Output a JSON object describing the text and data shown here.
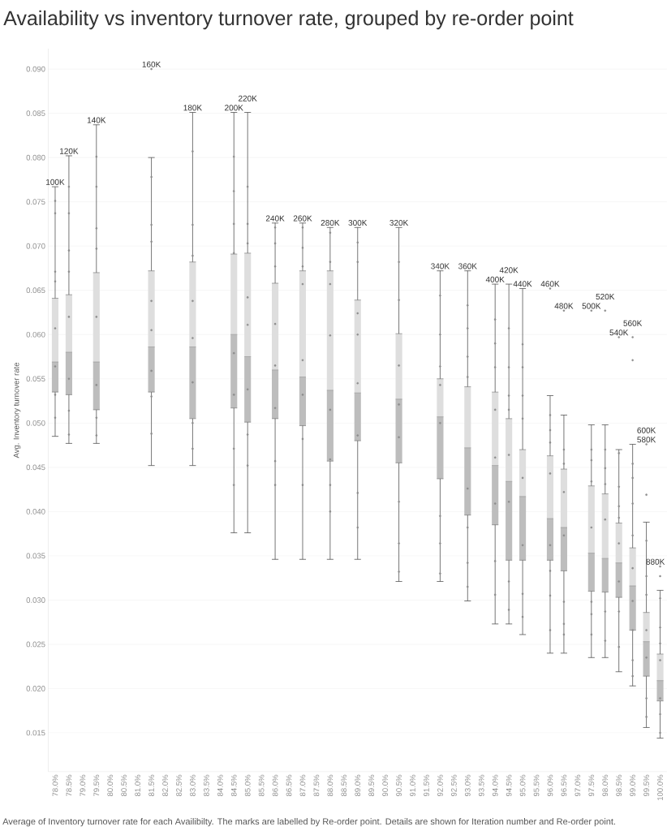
{
  "chart_data": {
    "type": "box",
    "title": "Availability vs inventory turnover rate, grouped by re-order point",
    "ylabel": "Avg. Inventory turnover rate",
    "categories": [
      "78.0%",
      "78.5%",
      "79.0%",
      "79.5%",
      "80.0%",
      "80.5%",
      "81.0%",
      "81.5%",
      "82.0%",
      "82.5%",
      "83.0%",
      "83.5%",
      "84.0%",
      "84.5%",
      "85.0%",
      "85.5%",
      "86.0%",
      "86.5%",
      "87.0%",
      "87.5%",
      "88.0%",
      "88.5%",
      "89.0%",
      "89.5%",
      "90.0%",
      "90.5%",
      "91.0%",
      "91.5%",
      "92.0%",
      "92.5%",
      "93.0%",
      "93.5%",
      "94.0%",
      "94.5%",
      "95.0%",
      "95.5%",
      "96.0%",
      "96.5%",
      "97.0%",
      "97.5%",
      "98.0%",
      "98.5%",
      "99.0%",
      "99.5%",
      "100.0%"
    ],
    "series": [
      {
        "type": "box",
        "color": "#dedede",
        "boxes": [
          {
            "low": 0.0485,
            "q1": 0.0535,
            "median": 0.0569,
            "q3": 0.0641,
            "high": 0.0767
          },
          {
            "low": 0.0477,
            "q1": 0.0532,
            "median": 0.058,
            "q3": 0.0645,
            "high": 0.0802
          },
          null,
          {
            "low": 0.0477,
            "q1": 0.0515,
            "median": 0.0569,
            "q3": 0.067,
            "high": 0.0837
          },
          null,
          null,
          null,
          {
            "low": 0.0452,
            "q1": 0.0535,
            "median": 0.0586,
            "q3": 0.0672,
            "high": 0.08
          },
          null,
          null,
          {
            "low": 0.0452,
            "q1": 0.0505,
            "median": 0.0586,
            "q3": 0.0682,
            "high": 0.0851
          },
          null,
          null,
          {
            "low": 0.0376,
            "q1": 0.0517,
            "median": 0.06,
            "q3": 0.0691,
            "high": 0.0851
          },
          {
            "low": 0.0376,
            "q1": 0.0501,
            "median": 0.0575,
            "q3": 0.0692,
            "high": 0.0851
          },
          null,
          {
            "low": 0.0346,
            "q1": 0.0505,
            "median": 0.056,
            "q3": 0.0658,
            "high": 0.0726
          },
          null,
          {
            "low": 0.0346,
            "q1": 0.0497,
            "median": 0.0552,
            "q3": 0.0672,
            "high": 0.0726
          },
          null,
          {
            "low": 0.0346,
            "q1": 0.0457,
            "median": 0.0537,
            "q3": 0.0672,
            "high": 0.0721
          },
          null,
          {
            "low": 0.0346,
            "q1": 0.048,
            "median": 0.0534,
            "q3": 0.0639,
            "high": 0.0721
          },
          null,
          null,
          {
            "low": 0.0321,
            "q1": 0.0455,
            "median": 0.0527,
            "q3": 0.0601,
            "high": 0.0721
          },
          null,
          null,
          {
            "low": 0.0321,
            "q1": 0.0437,
            "median": 0.0507,
            "q3": 0.055,
            "high": 0.0672
          },
          null,
          {
            "low": 0.0299,
            "q1": 0.0396,
            "median": 0.0472,
            "q3": 0.0541,
            "high": 0.0672
          },
          null,
          {
            "low": 0.0273,
            "q1": 0.0385,
            "median": 0.0452,
            "q3": 0.0535,
            "high": 0.0657
          },
          {
            "low": 0.0273,
            "q1": 0.0345,
            "median": 0.0434,
            "q3": 0.0505,
            "high": 0.0657
          },
          {
            "low": 0.0261,
            "q1": 0.0345,
            "median": 0.0417,
            "q3": 0.047,
            "high": 0.0652
          },
          null,
          {
            "low": 0.024,
            "q1": 0.0345,
            "median": 0.0392,
            "q3": 0.0463,
            "high": 0.0531
          },
          {
            "low": 0.024,
            "q1": 0.0333,
            "median": 0.0382,
            "q3": 0.0448,
            "high": 0.0509
          },
          null,
          {
            "low": 0.0235,
            "q1": 0.031,
            "median": 0.0353,
            "q3": 0.0429,
            "high": 0.0498
          },
          {
            "low": 0.0235,
            "q1": 0.0309,
            "median": 0.0347,
            "q3": 0.042,
            "high": 0.0498
          },
          {
            "low": 0.0219,
            "q1": 0.0303,
            "median": 0.0342,
            "q3": 0.0387,
            "high": 0.047
          },
          {
            "low": 0.0203,
            "q1": 0.0266,
            "median": 0.0316,
            "q3": 0.0359,
            "high": 0.0476
          },
          {
            "low": 0.0156,
            "q1": 0.0214,
            "median": 0.0253,
            "q3": 0.0286,
            "high": 0.0388
          },
          {
            "low": 0.0144,
            "q1": 0.0186,
            "median": 0.0209,
            "q3": 0.0239,
            "high": 0.0311
          }
        ]
      },
      {
        "type": "scatter",
        "color": "#8c8c8c",
        "marker": "circle",
        "x": [
          "78.0%",
          "78.0%",
          "78.0%",
          "78.0%",
          "78.0%",
          "78.0%",
          "78.0%",
          "78.0%",
          "78.5%",
          "78.5%",
          "78.5%",
          "78.5%",
          "78.5%",
          "78.5%",
          "78.5%",
          "78.5%",
          "79.5%",
          "79.5%",
          "79.5%",
          "79.5%",
          "79.5%",
          "79.5%",
          "79.5%",
          "79.5%",
          "81.5%",
          "81.5%",
          "81.5%",
          "81.5%",
          "81.5%",
          "81.5%",
          "81.5%",
          "81.5%",
          "83.0%",
          "83.0%",
          "83.0%",
          "83.0%",
          "83.0%",
          "83.0%",
          "83.0%",
          "83.0%",
          "84.5%",
          "84.5%",
          "84.5%",
          "84.5%",
          "84.5%",
          "84.5%",
          "84.5%",
          "84.5%",
          "85.0%",
          "85.0%",
          "85.0%",
          "85.0%",
          "85.0%",
          "85.0%",
          "85.0%",
          "85.0%",
          "86.0%",
          "86.0%",
          "86.0%",
          "86.0%",
          "86.0%",
          "86.0%",
          "86.0%",
          "86.0%",
          "87.0%",
          "87.0%",
          "87.0%",
          "87.0%",
          "87.0%",
          "87.0%",
          "87.0%",
          "87.0%",
          "88.0%",
          "88.0%",
          "88.0%",
          "88.0%",
          "88.0%",
          "88.0%",
          "88.0%",
          "88.0%",
          "89.0%",
          "89.0%",
          "89.0%",
          "89.0%",
          "89.0%",
          "89.0%",
          "89.0%",
          "89.0%",
          "90.5%",
          "90.5%",
          "90.5%",
          "90.5%",
          "90.5%",
          "90.5%",
          "90.5%",
          "90.5%",
          "92.0%",
          "92.0%",
          "92.0%",
          "92.0%",
          "92.0%",
          "92.0%",
          "92.0%",
          "92.0%",
          "93.0%",
          "93.0%",
          "93.0%",
          "93.0%",
          "93.0%",
          "93.0%",
          "93.0%",
          "93.0%",
          "94.0%",
          "94.0%",
          "94.0%",
          "94.0%",
          "94.0%",
          "94.0%",
          "94.0%",
          "94.0%",
          "94.5%",
          "94.5%",
          "94.5%",
          "94.5%",
          "94.5%",
          "94.5%",
          "94.5%",
          "94.5%",
          "95.0%",
          "95.0%",
          "95.0%",
          "95.0%",
          "95.0%",
          "95.0%",
          "95.0%",
          "95.0%",
          "96.0%",
          "96.0%",
          "96.0%",
          "96.0%",
          "96.0%",
          "96.0%",
          "96.0%",
          "96.0%",
          "96.5%",
          "96.5%",
          "96.5%",
          "96.5%",
          "96.5%",
          "96.5%",
          "96.5%",
          "97.5%",
          "97.5%",
          "97.5%",
          "97.5%",
          "97.5%",
          "97.5%",
          "97.5%",
          "98.0%",
          "98.0%",
          "98.0%",
          "98.0%",
          "98.0%",
          "98.0%",
          "98.5%",
          "98.5%",
          "98.5%",
          "98.5%",
          "98.5%",
          "98.5%",
          "98.5%",
          "98.5%",
          "99.0%",
          "99.0%",
          "99.0%",
          "99.0%",
          "99.0%",
          "99.0%",
          "99.0%",
          "99.0%",
          "99.0%",
          "99.5%",
          "99.5%",
          "99.5%",
          "99.5%",
          "99.5%",
          "99.5%",
          "99.5%",
          "100.0%",
          "100.0%",
          "100.0%",
          "100.0%",
          "100.0%",
          "100.0%",
          "100.0%",
          "81.5%",
          "96.0%",
          "96.5%",
          "97.5%",
          "98.0%",
          "98.5%",
          "99.0%",
          "99.0%",
          "99.5%",
          "99.5%",
          "100.0%",
          "100.0%"
        ],
        "values": [
          0.0751,
          0.0737,
          0.0671,
          0.066,
          0.0607,
          0.0564,
          0.0532,
          0.0506,
          0.0767,
          0.0737,
          0.0695,
          0.0671,
          0.062,
          0.055,
          0.0514,
          0.0487,
          0.0801,
          0.0767,
          0.072,
          0.0697,
          0.062,
          0.0543,
          0.0506,
          0.0486,
          0.0778,
          0.0724,
          0.0705,
          0.0638,
          0.0605,
          0.0559,
          0.053,
          0.0488,
          0.0807,
          0.0724,
          0.0689,
          0.0638,
          0.0596,
          0.0546,
          0.05,
          0.0471,
          0.0801,
          0.0762,
          0.0725,
          0.0692,
          0.0579,
          0.0532,
          0.0471,
          0.043,
          0.0767,
          0.0725,
          0.0703,
          0.0642,
          0.0611,
          0.0538,
          0.0487,
          0.0452,
          0.0721,
          0.0703,
          0.0677,
          0.0612,
          0.0565,
          0.0517,
          0.0457,
          0.043,
          0.0721,
          0.0698,
          0.0677,
          0.0657,
          0.0571,
          0.0532,
          0.0482,
          0.043,
          0.0715,
          0.0682,
          0.0657,
          0.0599,
          0.0515,
          0.0459,
          0.043,
          0.04,
          0.0704,
          0.0682,
          0.0624,
          0.06,
          0.0545,
          0.0486,
          0.0421,
          0.0382,
          0.0682,
          0.0639,
          0.0565,
          0.0521,
          0.0484,
          0.0411,
          0.0364,
          0.0332,
          0.0644,
          0.06,
          0.0564,
          0.0543,
          0.05,
          0.0395,
          0.0364,
          0.033,
          0.0633,
          0.0607,
          0.0575,
          0.0552,
          0.0426,
          0.0382,
          0.0342,
          0.0315,
          0.0617,
          0.059,
          0.0563,
          0.0515,
          0.0461,
          0.0409,
          0.0344,
          0.0306,
          0.0607,
          0.0563,
          0.0531,
          0.0515,
          0.0464,
          0.0411,
          0.0321,
          0.0289,
          0.0589,
          0.0563,
          0.0531,
          0.0505,
          0.0438,
          0.0362,
          0.0307,
          0.0281,
          0.0509,
          0.0492,
          0.0478,
          0.0443,
          0.0362,
          0.0333,
          0.0305,
          0.0266,
          0.047,
          0.0454,
          0.0422,
          0.0373,
          0.0298,
          0.0273,
          0.0261,
          0.047,
          0.0458,
          0.0434,
          0.0382,
          0.0298,
          0.0284,
          0.0261,
          0.047,
          0.0449,
          0.0431,
          0.0391,
          0.0287,
          0.0254,
          0.0466,
          0.0428,
          0.0406,
          0.0393,
          0.0364,
          0.0321,
          0.0287,
          0.0247,
          0.0454,
          0.0438,
          0.0409,
          0.0373,
          0.0336,
          0.0299,
          0.0266,
          0.0232,
          0.0214,
          0.0367,
          0.0327,
          0.0306,
          0.0266,
          0.0235,
          0.0189,
          0.0168,
          0.0302,
          0.0269,
          0.0251,
          0.0232,
          0.0189,
          0.0171,
          0.015,
          0.09,
          0.0652,
          0.0627,
          0.0627,
          0.0627,
          0.0597,
          0.0597,
          0.0571,
          0.0476,
          0.0419,
          0.0338,
          0.0327
        ]
      }
    ],
    "annotations": [
      {
        "text": "100K",
        "x": "78.0%",
        "y": 0.0767
      },
      {
        "text": "120K",
        "x": "78.5%",
        "y": 0.0802
      },
      {
        "text": "140K",
        "x": "79.5%",
        "y": 0.0837
      },
      {
        "text": "160K",
        "x": "81.5%",
        "y": 0.09
      },
      {
        "text": "180K",
        "x": "83.0%",
        "y": 0.0851
      },
      {
        "text": "200K",
        "x": "84.5%",
        "y": 0.0851
      },
      {
        "text": "220K",
        "x": "85.0%",
        "y": 0.0851
      },
      {
        "text": "240K",
        "x": "86.0%",
        "y": 0.0726
      },
      {
        "text": "260K",
        "x": "87.0%",
        "y": 0.0726
      },
      {
        "text": "280K",
        "x": "88.0%",
        "y": 0.0721
      },
      {
        "text": "300K",
        "x": "89.0%",
        "y": 0.0721
      },
      {
        "text": "320K",
        "x": "90.5%",
        "y": 0.0721
      },
      {
        "text": "340K",
        "x": "92.0%",
        "y": 0.0672
      },
      {
        "text": "360K",
        "x": "93.0%",
        "y": 0.0672
      },
      {
        "text": "400K",
        "x": "94.0%",
        "y": 0.0657
      },
      {
        "text": "420K",
        "x": "94.5%",
        "y": 0.0657
      },
      {
        "text": "440K",
        "x": "95.0%",
        "y": 0.0652
      },
      {
        "text": "460K",
        "x": "96.0%",
        "y": 0.0652
      },
      {
        "text": "480K",
        "x": "96.5%",
        "y": 0.0627
      },
      {
        "text": "500K",
        "x": "97.5%",
        "y": 0.0627
      },
      {
        "text": "520K",
        "x": "98.0%",
        "y": 0.0627
      },
      {
        "text": "540K",
        "x": "98.5%",
        "y": 0.0597
      },
      {
        "text": "560K",
        "x": "99.0%",
        "y": 0.0597
      },
      {
        "text": "580K",
        "x": "99.5%",
        "y": 0.0476
      },
      {
        "text": "600K",
        "x": "99.5%",
        "y": 0.0476
      },
      {
        "text": "880K",
        "x": "100.0%",
        "y": 0.0338
      },
      "Average of Inventory turnover rate for each Availibilty.  The marks are labelled by Re-order point.  Details are shown for Iteration number and Re-order point."
    ],
    "ylim": [
      0.0106,
      0.0923
    ],
    "yticks": [
      0.015,
      {
        "value": 0.02,
        "label": "0.020"
      },
      0.025,
      {
        "value": 0.03,
        "label": "0.030"
      },
      0.035,
      {
        "value": 0.04,
        "label": "0.040"
      },
      0.045,
      {
        "value": 0.05,
        "label": "0.050"
      },
      0.055,
      {
        "value": 0.06,
        "label": "0.060"
      },
      0.065,
      {
        "value": 0.07,
        "label": "0.070"
      },
      0.075,
      {
        "value": 0.08,
        "label": "0.080"
      },
      0.085,
      {
        "value": 0.09,
        "label": "0.090"
      }
    ],
    "grid": "y"
  }
}
